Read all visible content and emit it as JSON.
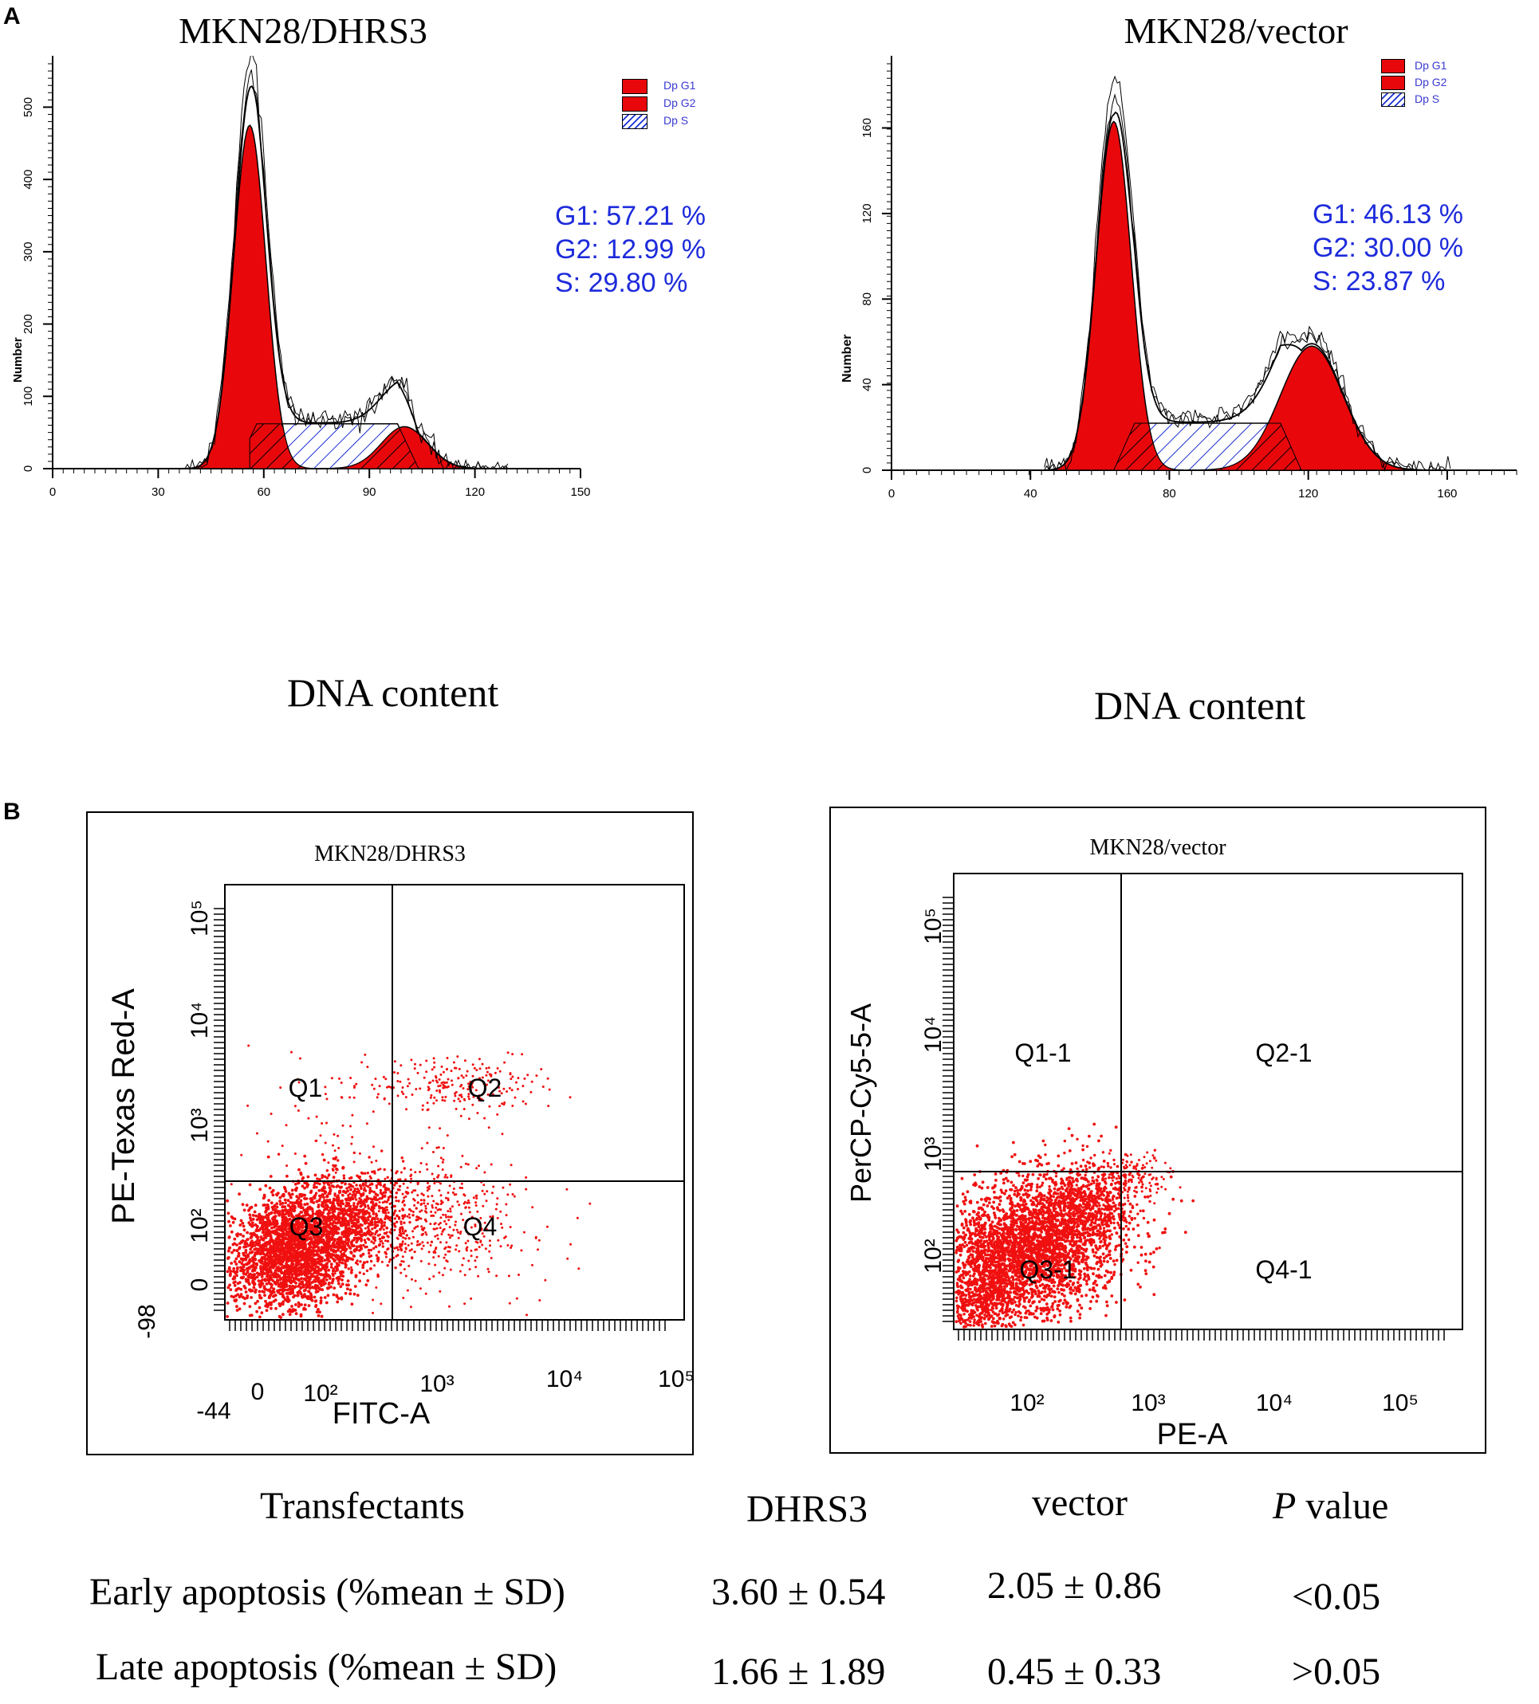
{
  "panel_labels": {
    "a": "A",
    "b": "B"
  },
  "chart_data": [
    {
      "type": "area",
      "title": "MKN28/DHRS3",
      "xlabel": "DNA content",
      "ylabel": "Number",
      "xlim": [
        0,
        150
      ],
      "ylim": [
        0,
        560
      ],
      "xticks": [
        "0",
        "30",
        "60",
        "90",
        "120",
        "150"
      ],
      "yticks": [
        "0",
        "100",
        "200",
        "300",
        "400",
        "500"
      ],
      "legend": [
        "Dp G1",
        "Dp G2",
        "Dp S"
      ],
      "legend_position": "top-right",
      "stats": [
        "G1: 57.21 %",
        "G2: 12.99 %",
        "S: 29.80 %"
      ],
      "series": [
        {
          "name": "Dp G1",
          "mean": 56,
          "peak": 475,
          "sd": 4.6
        },
        {
          "name": "Dp G2",
          "mean": 100,
          "peak": 58,
          "sd": 6.5
        },
        {
          "name": "Dp S",
          "start": 58,
          "end": 98,
          "level": 62
        }
      ],
      "values": {
        "G1": 57.21,
        "G2": 12.99,
        "S": 29.8
      }
    },
    {
      "type": "area",
      "title": "MKN28/vector",
      "xlabel": "DNA content",
      "ylabel": "Number",
      "xlim": [
        0,
        180
      ],
      "ylim": [
        0,
        190
      ],
      "xticks": [
        "0",
        "40",
        "80",
        "120",
        "160"
      ],
      "yticks": [
        "0",
        "40",
        "80",
        "120",
        "160"
      ],
      "legend": [
        "Dp G1",
        "Dp G2",
        "Dp S"
      ],
      "legend_position": "top-right",
      "stats": [
        "G1: 46.13 %",
        "G2: 30.00 %",
        "S: 23.87 %"
      ],
      "series": [
        {
          "name": "Dp G1",
          "mean": 64,
          "peak": 163,
          "sd": 5
        },
        {
          "name": "Dp G2",
          "mean": 121,
          "peak": 58,
          "sd": 9
        },
        {
          "name": "Dp S",
          "start": 70,
          "end": 112,
          "level": 22
        }
      ],
      "values": {
        "G1": 46.13,
        "G2": 30.0,
        "S": 23.87
      }
    },
    {
      "type": "scatter",
      "title": "MKN28/DHRS3",
      "xlabel": "FITC-A",
      "ylabel": "PE-Texas Red-A",
      "xtick_labels": [
        "-44",
        "0",
        "10²",
        "10³",
        "10⁴",
        "10⁵"
      ],
      "ytick_labels": [
        "-98",
        "0",
        "10²",
        "10³",
        "10⁴",
        "10⁵"
      ],
      "quadrants": [
        "Q1",
        "Q2",
        "Q3",
        "Q4"
      ]
    },
    {
      "type": "scatter",
      "title": "MKN28/vector",
      "xlabel": "PE-A",
      "ylabel": "PerCP-Cy5-5-A",
      "xtick_labels": [
        "10²",
        "10³",
        "10⁴",
        "10⁵"
      ],
      "ytick_labels": [
        "10²",
        "10³",
        "10⁴",
        "10⁵"
      ],
      "quadrants": [
        "Q1-1",
        "Q2-1",
        "Q3-1",
        "Q4-1"
      ]
    }
  ],
  "table": {
    "headers": [
      "Transfectants",
      "DHRS3",
      "vector",
      "P value"
    ],
    "p_italic": "P",
    "p_rest": " value",
    "rows": [
      {
        "label_a": "Early",
        "label_b": "apoptosis",
        "label_c": "(%mean ± SD)",
        "dhrs3": "3.60 ± 0.54",
        "vector": "2.05 ± 0.86",
        "p": "<0.05"
      },
      {
        "label_a": "Late",
        "label_b": "apoptosis",
        "label_c": "(%mean ± SD)",
        "dhrs3": "1.66 ± 1.89",
        "vector": "0.45 ± 0.33",
        "p": ">0.05"
      }
    ]
  }
}
